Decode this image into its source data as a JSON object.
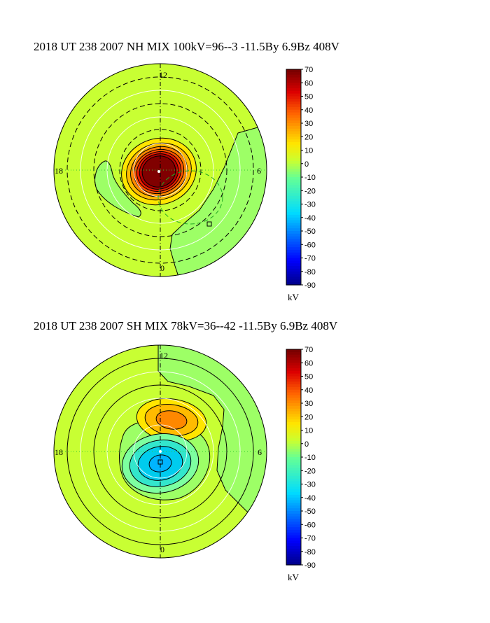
{
  "chart_data": [
    {
      "type": "heatmap",
      "title": "2018 UT 238 2007 NH MIX 100kV=96--3 -11.5By  6.9Bz 408V",
      "hemisphere": "NH",
      "mlt_labels": {
        "top": "12",
        "left": "18",
        "right": "6",
        "bottom": "0"
      },
      "colorbar": {
        "min": -90,
        "max": 70,
        "step": 10,
        "unit": "kV",
        "ticks": [
          "70",
          "60",
          "50",
          "40",
          "30",
          "20",
          "10",
          "0",
          "-10",
          "-20",
          "-30",
          "-40",
          "-50",
          "-60",
          "-70",
          "-80",
          "-90"
        ]
      },
      "potential_max_kV": 96,
      "potential_min_kV": -3,
      "cross_polar_cap_potential_kV": 100,
      "IMF_By_nT": -11.5,
      "IMF_Bz_nT": 6.9,
      "solar_wind_speed_km_s": 408,
      "background": "#c8ff33",
      "cells": [
        {
          "sign": "positive",
          "peak_kV": 96,
          "colors": [
            "#ffe600",
            "#ffbb00",
            "#ff8800",
            "#ff5500",
            "#e61e00",
            "#b40000",
            "#800000"
          ]
        }
      ]
    },
    {
      "type": "heatmap",
      "title": "2018 UT 238 2007 SH MIX 78kV=36--42 -11.5By  6.9Bz 408V",
      "hemisphere": "SH",
      "mlt_labels": {
        "top": "12",
        "left": "18",
        "right": "6",
        "bottom": "0"
      },
      "colorbar": {
        "min": -90,
        "max": 70,
        "step": 10,
        "unit": "kV",
        "ticks": [
          "70",
          "60",
          "50",
          "40",
          "30",
          "20",
          "10",
          "0",
          "-10",
          "-20",
          "-30",
          "-40",
          "-50",
          "-60",
          "-70",
          "-80",
          "-90"
        ]
      },
      "potential_max_kV": 36,
      "potential_min_kV": -42,
      "cross_polar_cap_potential_kV": 78,
      "IMF_By_nT": -11.5,
      "IMF_Bz_nT": 6.9,
      "solar_wind_speed_km_s": 408,
      "background": "#c8ff33",
      "cells": [
        {
          "sign": "positive",
          "peak_kV": 36,
          "colors": [
            "#ffe600",
            "#ffbb00",
            "#ff8800"
          ]
        },
        {
          "sign": "negative",
          "peak_kV": -42,
          "colors": [
            "#7dffa0",
            "#33e6cc",
            "#00ccee",
            "#00b4ff"
          ]
        }
      ]
    }
  ]
}
